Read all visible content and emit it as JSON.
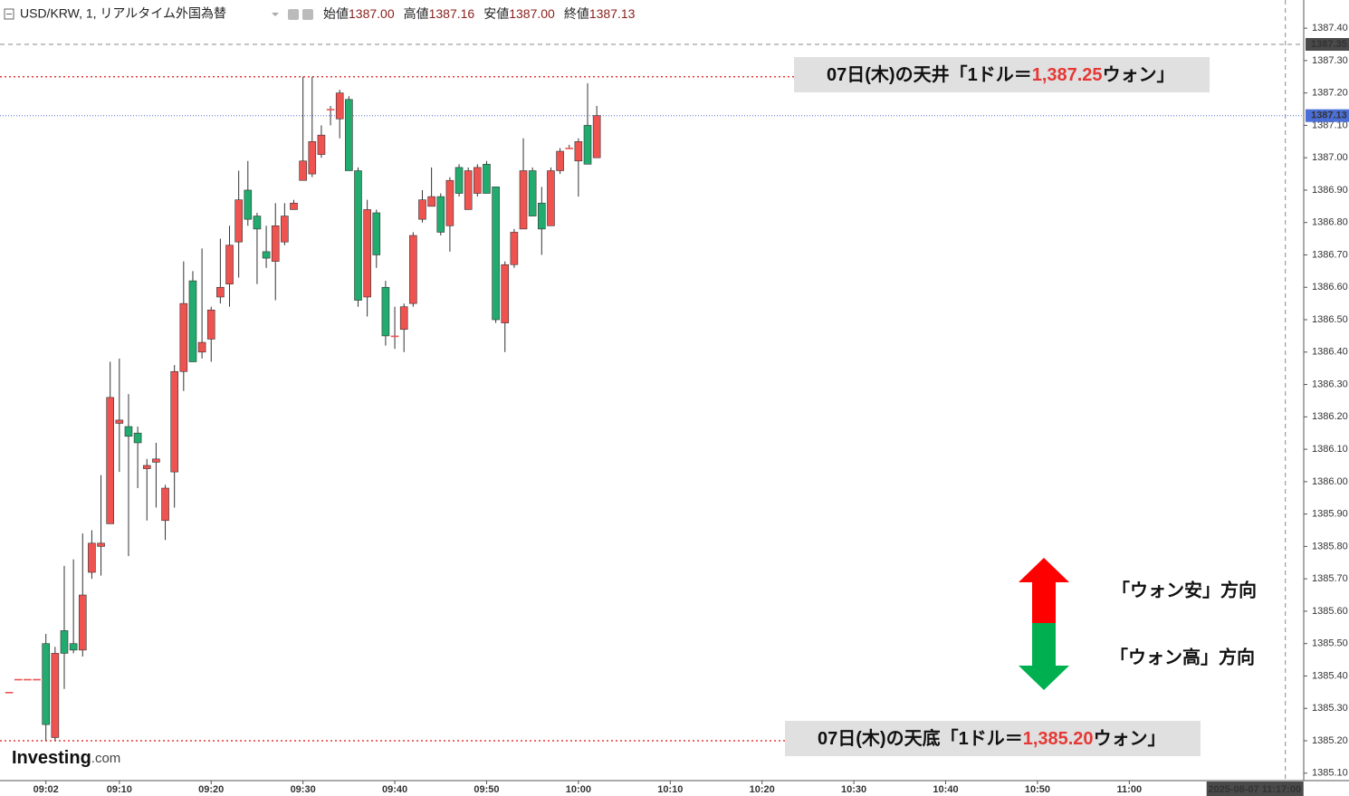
{
  "header": {
    "symbol": "USD/KRW, 1, リアルタイム外国為替",
    "ohlc": [
      {
        "label": "始値",
        "value": "1387.00"
      },
      {
        "label": "高値",
        "value": "1387.16"
      },
      {
        "label": "安値",
        "value": "1387.00"
      },
      {
        "label": "終値",
        "value": "1387.13"
      }
    ]
  },
  "chart_data": {
    "type": "candlestick",
    "x": [
      "08:58",
      "08:59",
      "09:00",
      "09:01",
      "09:02",
      "09:03",
      "09:04",
      "09:05",
      "09:06",
      "09:07",
      "09:08",
      "09:09",
      "09:10",
      "09:11",
      "09:12",
      "09:13",
      "09:14",
      "09:15",
      "09:16",
      "09:17",
      "09:18",
      "09:19",
      "09:20",
      "09:21",
      "09:22",
      "09:23",
      "09:24",
      "09:25",
      "09:26",
      "09:27",
      "09:28",
      "09:29",
      "09:30",
      "09:31",
      "09:32",
      "09:33",
      "09:34",
      "09:35",
      "09:36",
      "09:37",
      "09:38",
      "09:39",
      "09:40",
      "09:41",
      "09:42",
      "09:43",
      "09:44",
      "09:45",
      "09:46",
      "09:47",
      "09:48",
      "09:49",
      "09:50",
      "09:51",
      "09:52",
      "09:53",
      "09:54",
      "09:55",
      "09:56",
      "09:57",
      "09:58",
      "09:59",
      "10:00",
      "10:01",
      "10:02"
    ],
    "open": [
      1385.35,
      1385.39,
      1385.39,
      1385.39,
      1385.5,
      1385.21,
      1385.54,
      1385.5,
      1385.48,
      1385.72,
      1385.8,
      1385.87,
      1386.18,
      1386.17,
      1386.15,
      1386.04,
      1386.06,
      1385.88,
      1386.03,
      1386.34,
      1386.62,
      1386.4,
      1386.44,
      1386.57,
      1386.61,
      1386.74,
      1386.9,
      1386.82,
      1386.71,
      1386.68,
      1386.74,
      1386.84,
      1386.93,
      1386.95,
      1387.01,
      1387.15,
      1387.12,
      1387.18,
      1386.96,
      1386.57,
      1386.83,
      1386.6,
      1386.45,
      1386.47,
      1386.55,
      1386.81,
      1386.85,
      1386.88,
      1386.79,
      1386.97,
      1386.84,
      1386.89,
      1386.98,
      1386.91,
      1386.49,
      1386.67,
      1386.78,
      1386.96,
      1386.86,
      1386.79,
      1386.96,
      1387.03,
      1386.99,
      1387.1,
      1387.0
    ],
    "high": [
      1385.35,
      1385.39,
      1385.39,
      1385.39,
      1385.53,
      1385.49,
      1385.74,
      1385.76,
      1385.84,
      1385.85,
      1386.02,
      1386.37,
      1386.38,
      1386.27,
      1386.17,
      1386.07,
      1386.12,
      1385.99,
      1386.36,
      1386.68,
      1386.65,
      1386.72,
      1386.54,
      1386.75,
      1386.79,
      1386.96,
      1386.99,
      1386.83,
      1386.79,
      1386.86,
      1386.86,
      1386.87,
      1387.25,
      1387.25,
      1387.1,
      1387.16,
      1387.21,
      1387.19,
      1386.97,
      1386.87,
      1386.84,
      1386.62,
      1386.54,
      1386.55,
      1386.77,
      1386.9,
      1386.97,
      1386.89,
      1386.94,
      1386.98,
      1386.97,
      1386.98,
      1386.99,
      1386.91,
      1386.68,
      1386.78,
      1387.06,
      1386.97,
      1386.91,
      1386.97,
      1387.03,
      1387.04,
      1387.06,
      1387.23,
      1387.16
    ],
    "low": [
      1385.35,
      1385.39,
      1385.39,
      1385.39,
      1385.2,
      1385.2,
      1385.36,
      1385.47,
      1385.46,
      1385.7,
      1385.71,
      1385.87,
      1386.03,
      1385.77,
      1385.98,
      1385.88,
      1385.92,
      1385.82,
      1385.92,
      1386.28,
      1386.37,
      1386.38,
      1386.37,
      1386.55,
      1386.54,
      1386.63,
      1386.79,
      1386.61,
      1386.66,
      1386.56,
      1386.73,
      1386.84,
      1386.93,
      1386.94,
      1387.0,
      1387.1,
      1387.06,
      1386.96,
      1386.54,
      1386.51,
      1386.66,
      1386.42,
      1386.41,
      1386.4,
      1386.54,
      1386.8,
      1386.85,
      1386.76,
      1386.71,
      1386.88,
      1386.84,
      1386.88,
      1386.89,
      1386.49,
      1386.4,
      1386.66,
      1386.78,
      1386.82,
      1386.7,
      1386.79,
      1386.95,
      1387.03,
      1386.88,
      1386.98,
      1387.0
    ],
    "close": [
      1385.35,
      1385.39,
      1385.39,
      1385.39,
      1385.25,
      1385.47,
      1385.47,
      1385.48,
      1385.65,
      1385.81,
      1385.81,
      1386.26,
      1386.19,
      1386.14,
      1386.12,
      1386.05,
      1386.07,
      1385.98,
      1386.34,
      1386.55,
      1386.37,
      1386.43,
      1386.53,
      1386.6,
      1386.73,
      1386.87,
      1386.81,
      1386.78,
      1386.69,
      1386.79,
      1386.82,
      1386.86,
      1386.99,
      1387.05,
      1387.07,
      1387.15,
      1387.2,
      1386.96,
      1386.56,
      1386.84,
      1386.7,
      1386.45,
      1386.45,
      1386.54,
      1386.76,
      1386.87,
      1386.88,
      1386.77,
      1386.93,
      1386.89,
      1386.96,
      1386.97,
      1386.89,
      1386.5,
      1386.67,
      1386.77,
      1386.96,
      1386.82,
      1386.78,
      1386.96,
      1387.02,
      1387.03,
      1387.05,
      1386.98,
      1387.13
    ],
    "up_color": "#ef5350",
    "down_color": "#22ab6e",
    "xlim": [
      "08:57",
      "11:19"
    ],
    "xticks": [
      "09:02",
      "09:10",
      "09:20",
      "09:30",
      "09:40",
      "09:50",
      "10:00",
      "10:10",
      "10:20",
      "10:30",
      "10:40",
      "10:50",
      "11:00"
    ],
    "ylim": [
      1385.077,
      1387.487
    ],
    "yticks": [
      {
        "value": 1385.1,
        "label": "1385.10"
      },
      {
        "value": 1385.2,
        "label": "1385.20"
      },
      {
        "value": 1385.3,
        "label": "1385.30"
      },
      {
        "value": 1385.4,
        "label": "1385.40"
      },
      {
        "value": 1385.5,
        "label": "1385.50"
      },
      {
        "value": 1385.6,
        "label": "1385.60"
      },
      {
        "value": 1385.7,
        "label": "1385.70"
      },
      {
        "value": 1385.8,
        "label": "1385.80"
      },
      {
        "value": 1385.9,
        "label": "1385.90"
      },
      {
        "value": 1386.0,
        "label": "1386.00"
      },
      {
        "value": 1386.1,
        "label": "1386.10"
      },
      {
        "value": 1386.2,
        "label": "1386.20"
      },
      {
        "value": 1386.3,
        "label": "1386.30"
      },
      {
        "value": 1386.4,
        "label": "1386.40"
      },
      {
        "value": 1386.5,
        "label": "1386.50"
      },
      {
        "value": 1386.6,
        "label": "1386.60"
      },
      {
        "value": 1386.7,
        "label": "1386.70"
      },
      {
        "value": 1386.8,
        "label": "1386.80"
      },
      {
        "value": 1386.9,
        "label": "1386.90"
      },
      {
        "value": 1387.0,
        "label": "1387.00"
      },
      {
        "value": 1387.1,
        "label": "1387.10"
      },
      {
        "value": 1387.2,
        "label": "1387.20"
      },
      {
        "value": 1387.3,
        "label": "1387.30"
      },
      {
        "value": 1387.4,
        "label": "1387.40"
      }
    ],
    "reference_lines": [
      {
        "value": 1387.25,
        "color": "#e53935",
        "text": [
          "07日(木)の天井「1ドル＝",
          "1,387.25",
          "ウォン」"
        ]
      },
      {
        "value": 1385.2,
        "color": "#e53935",
        "text": [
          "07日(木)の天底「1ドル＝",
          "1,385.20",
          "ウォン」"
        ]
      }
    ],
    "last_price": {
      "value": 1387.13,
      "color": "#4a6fd8"
    },
    "crosshair": {
      "y": 1387.35,
      "label": "2025-08-07 11:17:00"
    },
    "direction_legend": [
      {
        "text": "「ウォン安」方向",
        "color": "#ff0000"
      },
      {
        "text": "「ウォン高」方向",
        "color": "#00b050"
      }
    ],
    "watermark": [
      "Investing",
      ".com"
    ]
  }
}
